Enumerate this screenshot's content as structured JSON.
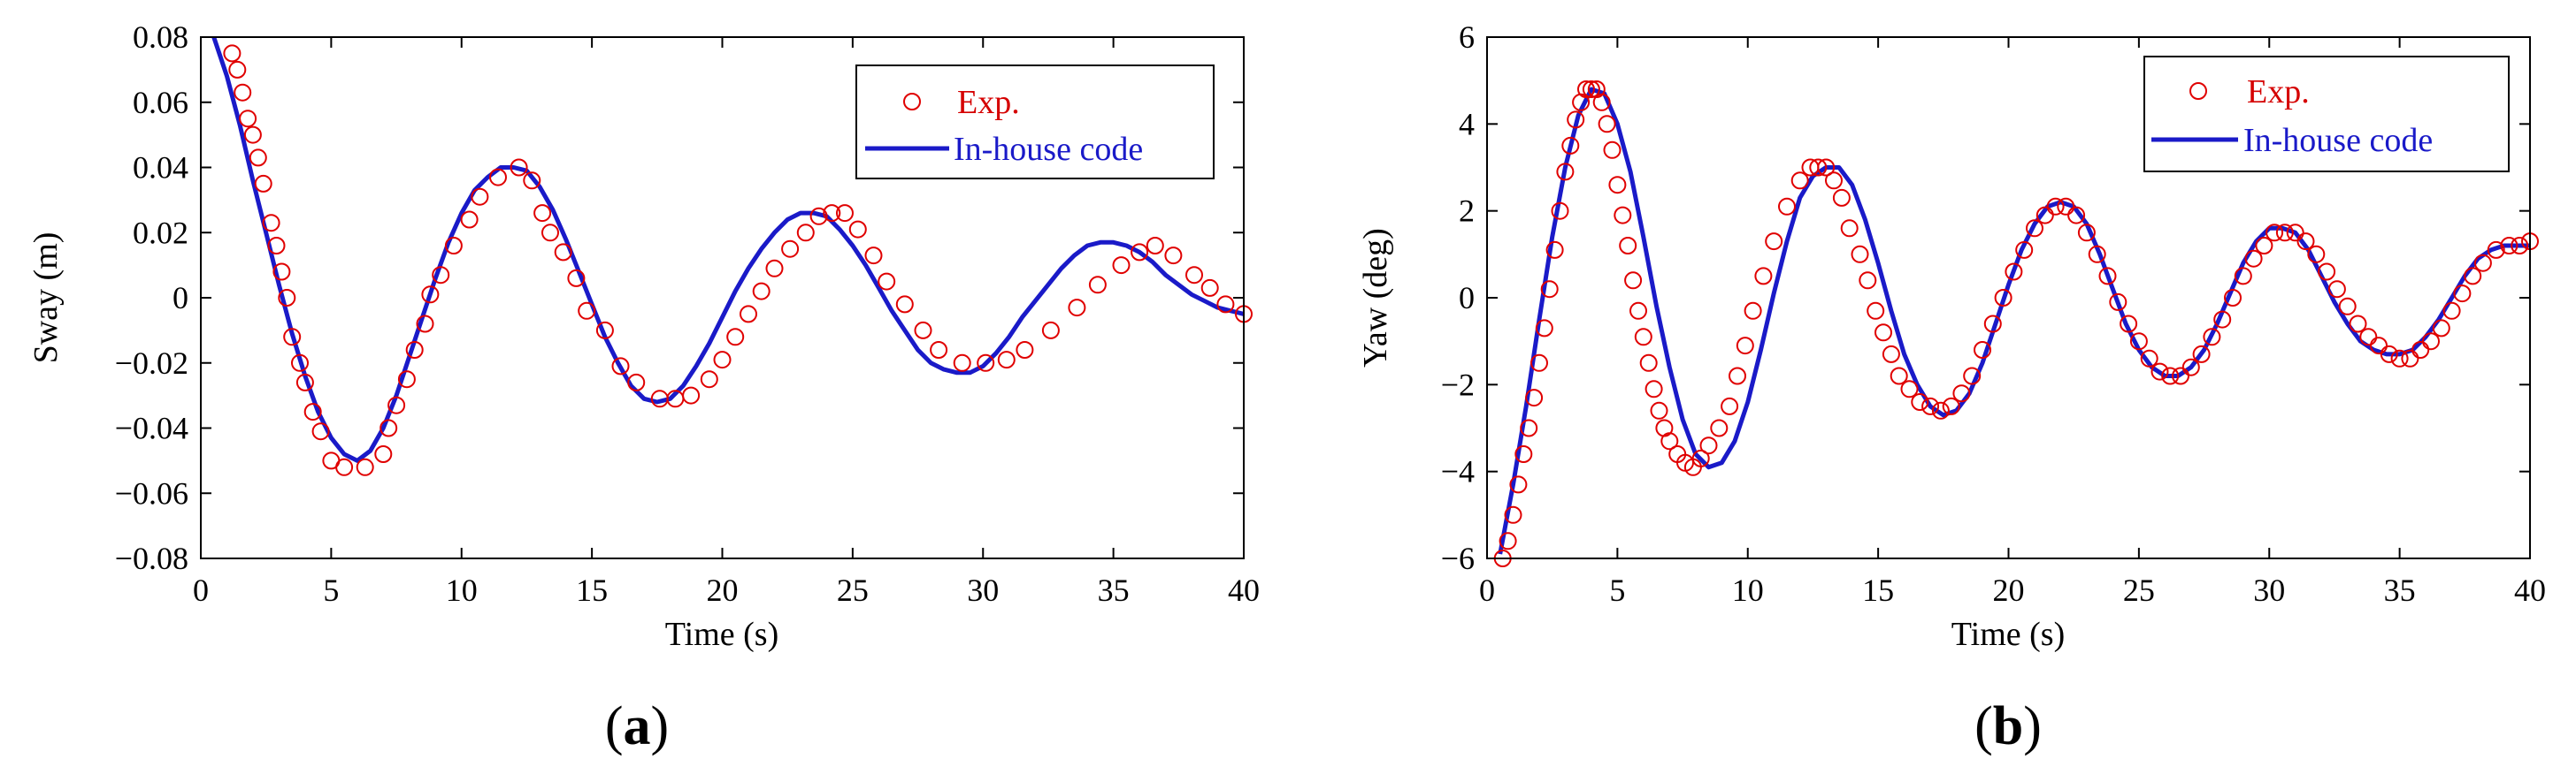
{
  "chart_data": [
    {
      "type": "line",
      "panel_label": {
        "open": "(",
        "letter": "a",
        "close": ")"
      },
      "xlabel": "Time (s)",
      "ylabel": "Sway (m)",
      "xlim": [
        0,
        40
      ],
      "ylim": [
        -0.08,
        0.08
      ],
      "xticks": [
        0,
        5,
        10,
        15,
        20,
        25,
        30,
        35,
        40
      ],
      "yticks": [
        -0.08,
        -0.06,
        -0.04,
        -0.02,
        0,
        0.02,
        0.04,
        0.06,
        0.08
      ],
      "xtick_labels": [
        "0",
        "5",
        "10",
        "15",
        "20",
        "25",
        "30",
        "35",
        "40"
      ],
      "ytick_labels": [
        "−0.08",
        "−0.06",
        "−0.04",
        "−0.02",
        "0",
        "0.02",
        "0.04",
        "0.06",
        "0.08"
      ],
      "legend": {
        "placement": "top-right",
        "entries": [
          "Exp.",
          "In-house code"
        ]
      },
      "series": [
        {
          "name": "Exp.",
          "marker": "open-circle",
          "color": "#e00000",
          "x": [
            1.2,
            1.4,
            1.6,
            1.8,
            2.0,
            2.2,
            2.4,
            2.7,
            2.9,
            3.1,
            3.3,
            3.5,
            3.8,
            4.0,
            4.3,
            4.6,
            5.0,
            5.5,
            6.3,
            7.0,
            7.2,
            7.5,
            7.9,
            8.2,
            8.6,
            8.8,
            9.2,
            9.7,
            10.3,
            10.7,
            11.4,
            12.2,
            12.7,
            13.1,
            13.4,
            13.9,
            14.4,
            14.8,
            15.5,
            16.1,
            16.7,
            17.6,
            18.2,
            18.8,
            19.5,
            20.0,
            20.5,
            21.0,
            21.5,
            22.0,
            22.6,
            23.2,
            23.7,
            24.2,
            24.7,
            25.2,
            25.8,
            26.3,
            27.0,
            27.7,
            28.3,
            29.2,
            30.1,
            30.9,
            31.6,
            32.6,
            33.6,
            34.4,
            35.3,
            36.0,
            36.6,
            37.3,
            38.1,
            38.7,
            39.3,
            40.0
          ],
          "y": [
            0.075,
            0.07,
            0.063,
            0.055,
            0.05,
            0.043,
            0.035,
            0.023,
            0.016,
            0.008,
            0.0,
            -0.012,
            -0.02,
            -0.026,
            -0.035,
            -0.041,
            -0.05,
            -0.052,
            -0.052,
            -0.048,
            -0.04,
            -0.033,
            -0.025,
            -0.016,
            -0.008,
            0.001,
            0.007,
            0.016,
            0.024,
            0.031,
            0.037,
            0.04,
            0.036,
            0.026,
            0.02,
            0.014,
            0.006,
            -0.004,
            -0.01,
            -0.021,
            -0.026,
            -0.031,
            -0.031,
            -0.03,
            -0.025,
            -0.019,
            -0.012,
            -0.005,
            0.002,
            0.009,
            0.015,
            0.02,
            0.025,
            0.026,
            0.026,
            0.021,
            0.013,
            0.005,
            -0.002,
            -0.01,
            -0.016,
            -0.02,
            -0.02,
            -0.019,
            -0.016,
            -0.01,
            -0.003,
            0.004,
            0.01,
            0.014,
            0.016,
            0.013,
            0.007,
            0.003,
            -0.002,
            -0.005
          ]
        },
        {
          "name": "In-house code",
          "marker": "line",
          "color": "#1a1ac8",
          "x": [
            0.5,
            1.0,
            1.5,
            2.0,
            2.5,
            3.0,
            3.5,
            4.0,
            4.5,
            5.0,
            5.5,
            6.0,
            6.5,
            7.0,
            7.5,
            8.0,
            8.5,
            9.0,
            9.5,
            10.0,
            10.5,
            11.0,
            11.5,
            12.0,
            12.5,
            13.0,
            13.5,
            14.0,
            14.5,
            15.0,
            15.5,
            16.0,
            16.5,
            17.0,
            17.5,
            18.0,
            18.5,
            19.0,
            19.5,
            20.0,
            20.5,
            21.0,
            21.5,
            22.0,
            22.5,
            23.0,
            23.5,
            24.0,
            24.5,
            25.0,
            25.5,
            26.0,
            26.5,
            27.0,
            27.5,
            28.0,
            28.5,
            29.0,
            29.5,
            30.0,
            30.5,
            31.0,
            31.5,
            32.0,
            32.5,
            33.0,
            33.5,
            34.0,
            34.5,
            35.0,
            35.5,
            36.0,
            36.5,
            37.0,
            37.5,
            38.0,
            38.5,
            39.0,
            39.5,
            40.0
          ],
          "y": [
            0.08,
            0.068,
            0.053,
            0.036,
            0.02,
            0.004,
            -0.011,
            -0.024,
            -0.035,
            -0.043,
            -0.048,
            -0.05,
            -0.047,
            -0.04,
            -0.03,
            -0.018,
            -0.006,
            0.006,
            0.017,
            0.026,
            0.033,
            0.037,
            0.04,
            0.04,
            0.039,
            0.034,
            0.027,
            0.018,
            0.008,
            -0.002,
            -0.012,
            -0.02,
            -0.027,
            -0.031,
            -0.032,
            -0.031,
            -0.027,
            -0.021,
            -0.014,
            -0.006,
            0.002,
            0.009,
            0.015,
            0.02,
            0.024,
            0.026,
            0.026,
            0.025,
            0.021,
            0.016,
            0.01,
            0.003,
            -0.004,
            -0.01,
            -0.016,
            -0.02,
            -0.022,
            -0.023,
            -0.023,
            -0.021,
            -0.017,
            -0.012,
            -0.006,
            -0.001,
            0.004,
            0.009,
            0.013,
            0.016,
            0.017,
            0.017,
            0.016,
            0.014,
            0.011,
            0.007,
            0.004,
            0.001,
            -0.001,
            -0.003,
            -0.004,
            -0.005
          ]
        }
      ]
    },
    {
      "type": "line",
      "panel_label": {
        "open": "(",
        "letter": "b",
        "close": ")"
      },
      "xlabel": "Time (s)",
      "ylabel": "Yaw (deg)",
      "xlim": [
        0,
        40
      ],
      "ylim": [
        -6,
        6
      ],
      "xticks": [
        0,
        5,
        10,
        15,
        20,
        25,
        30,
        35,
        40
      ],
      "yticks": [
        -6,
        -4,
        -2,
        0,
        2,
        4,
        6
      ],
      "xtick_labels": [
        "0",
        "5",
        "10",
        "15",
        "20",
        "25",
        "30",
        "35",
        "40"
      ],
      "ytick_labels": [
        "−6",
        "−4",
        "−2",
        "0",
        "2",
        "4",
        "6"
      ],
      "legend": {
        "placement": "top-right",
        "entries": [
          "Exp.",
          "In-house code"
        ]
      },
      "series": [
        {
          "name": "Exp.",
          "marker": "open-circle",
          "color": "#e00000",
          "x": [
            0.6,
            0.8,
            1.0,
            1.2,
            1.4,
            1.6,
            1.8,
            2.0,
            2.2,
            2.4,
            2.6,
            2.8,
            3.0,
            3.2,
            3.4,
            3.6,
            3.8,
            4.0,
            4.2,
            4.4,
            4.6,
            4.8,
            5.0,
            5.2,
            5.4,
            5.6,
            5.8,
            6.0,
            6.2,
            6.4,
            6.6,
            6.8,
            7.0,
            7.3,
            7.6,
            7.9,
            8.2,
            8.5,
            8.9,
            9.3,
            9.6,
            9.9,
            10.2,
            10.6,
            11.0,
            11.5,
            12.0,
            12.4,
            12.7,
            13.0,
            13.3,
            13.6,
            13.9,
            14.3,
            14.6,
            14.9,
            15.2,
            15.5,
            15.8,
            16.2,
            16.6,
            17.0,
            17.4,
            17.8,
            18.2,
            18.6,
            19.0,
            19.4,
            19.8,
            20.2,
            20.6,
            21.0,
            21.4,
            21.8,
            22.2,
            22.6,
            23.0,
            23.4,
            23.8,
            24.2,
            24.6,
            25.0,
            25.4,
            25.8,
            26.2,
            26.6,
            27.0,
            27.4,
            27.8,
            28.2,
            28.6,
            29.0,
            29.4,
            29.8,
            30.2,
            30.6,
            31.0,
            31.4,
            31.8,
            32.2,
            32.6,
            33.0,
            33.4,
            33.8,
            34.2,
            34.6,
            35.0,
            35.4,
            35.8,
            36.2,
            36.6,
            37.0,
            37.4,
            37.8,
            38.2,
            38.7,
            39.2,
            39.6,
            40.0
          ],
          "y": [
            -6.0,
            -5.6,
            -5.0,
            -4.3,
            -3.6,
            -3.0,
            -2.3,
            -1.5,
            -0.7,
            0.2,
            1.1,
            2.0,
            2.9,
            3.5,
            4.1,
            4.5,
            4.8,
            4.8,
            4.8,
            4.5,
            4.0,
            3.4,
            2.6,
            1.9,
            1.2,
            0.4,
            -0.3,
            -0.9,
            -1.5,
            -2.1,
            -2.6,
            -3.0,
            -3.3,
            -3.6,
            -3.8,
            -3.9,
            -3.7,
            -3.4,
            -3.0,
            -2.5,
            -1.8,
            -1.1,
            -0.3,
            0.5,
            1.3,
            2.1,
            2.7,
            3.0,
            3.0,
            3.0,
            2.7,
            2.3,
            1.6,
            1.0,
            0.4,
            -0.3,
            -0.8,
            -1.3,
            -1.8,
            -2.1,
            -2.4,
            -2.5,
            -2.6,
            -2.5,
            -2.2,
            -1.8,
            -1.2,
            -0.6,
            0.0,
            0.6,
            1.1,
            1.6,
            1.9,
            2.1,
            2.1,
            1.9,
            1.5,
            1.0,
            0.5,
            -0.1,
            -0.6,
            -1.0,
            -1.4,
            -1.7,
            -1.8,
            -1.8,
            -1.6,
            -1.3,
            -0.9,
            -0.5,
            0.0,
            0.5,
            0.9,
            1.2,
            1.5,
            1.5,
            1.5,
            1.3,
            1.0,
            0.6,
            0.2,
            -0.2,
            -0.6,
            -0.9,
            -1.1,
            -1.3,
            -1.4,
            -1.4,
            -1.2,
            -1.0,
            -0.7,
            -0.3,
            0.1,
            0.5,
            0.8,
            1.1,
            1.2,
            1.2,
            1.3
          ]
        },
        {
          "name": "In-house code",
          "marker": "line",
          "color": "#1a1ac8",
          "x": [
            0.5,
            1.0,
            1.5,
            2.0,
            2.5,
            3.0,
            3.5,
            4.0,
            4.5,
            5.0,
            5.5,
            6.0,
            6.5,
            7.0,
            7.5,
            8.0,
            8.5,
            9.0,
            9.5,
            10.0,
            10.5,
            11.0,
            11.5,
            12.0,
            12.5,
            13.0,
            13.5,
            14.0,
            14.5,
            15.0,
            15.5,
            16.0,
            16.5,
            17.0,
            17.5,
            18.0,
            18.5,
            19.0,
            19.5,
            20.0,
            20.5,
            21.0,
            21.5,
            22.0,
            22.5,
            23.0,
            23.5,
            24.0,
            24.5,
            25.0,
            25.5,
            26.0,
            26.5,
            27.0,
            27.5,
            28.0,
            28.5,
            29.0,
            29.5,
            30.0,
            30.5,
            31.0,
            31.5,
            32.0,
            32.5,
            33.0,
            33.5,
            34.0,
            34.5,
            35.0,
            35.5,
            36.0,
            36.5,
            37.0,
            37.5,
            38.0,
            38.5,
            39.0,
            39.5,
            40.0
          ],
          "y": [
            -5.9,
            -4.3,
            -2.5,
            -0.5,
            1.4,
            3.0,
            4.2,
            4.8,
            4.7,
            4.0,
            2.9,
            1.4,
            -0.2,
            -1.6,
            -2.8,
            -3.6,
            -3.9,
            -3.8,
            -3.3,
            -2.4,
            -1.2,
            0.1,
            1.3,
            2.3,
            2.8,
            3.0,
            3.0,
            2.6,
            1.8,
            0.8,
            -0.3,
            -1.3,
            -2.0,
            -2.5,
            -2.7,
            -2.6,
            -2.2,
            -1.5,
            -0.6,
            0.3,
            1.1,
            1.7,
            2.1,
            2.2,
            2.1,
            1.7,
            1.0,
            0.2,
            -0.6,
            -1.2,
            -1.6,
            -1.8,
            -1.8,
            -1.6,
            -1.2,
            -0.6,
            0.1,
            0.8,
            1.3,
            1.6,
            1.6,
            1.5,
            1.1,
            0.5,
            -0.1,
            -0.6,
            -1.0,
            -1.2,
            -1.3,
            -1.3,
            -1.2,
            -0.9,
            -0.5,
            0.0,
            0.5,
            0.9,
            1.1,
            1.2,
            1.2,
            1.2
          ]
        }
      ]
    }
  ]
}
